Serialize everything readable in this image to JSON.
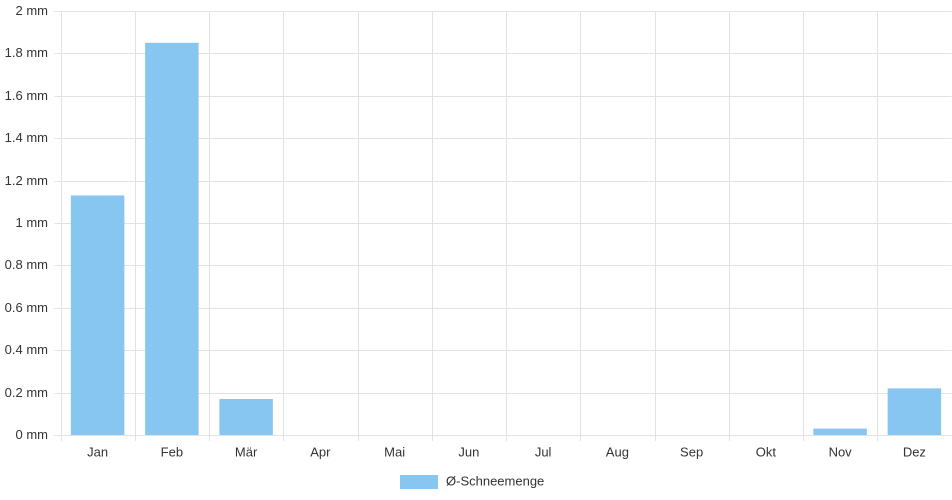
{
  "chart_data": {
    "type": "bar",
    "categories": [
      "Jan",
      "Feb",
      "Mär",
      "Apr",
      "Mai",
      "Jun",
      "Jul",
      "Aug",
      "Sep",
      "Okt",
      "Nov",
      "Dez"
    ],
    "series": [
      {
        "name": "Ø-Schneemenge",
        "color": "#88c6f2",
        "values": [
          1.13,
          1.85,
          0.17,
          0,
          0,
          0,
          0,
          0,
          0,
          0,
          0.03,
          0.22
        ]
      }
    ],
    "ylim": [
      0,
      2
    ],
    "yticks": [
      {
        "value": 0,
        "label": "0 mm"
      },
      {
        "value": 0.2,
        "label": "0.2 mm"
      },
      {
        "value": 0.4,
        "label": "0.4 mm"
      },
      {
        "value": 0.6,
        "label": "0.6 mm"
      },
      {
        "value": 0.8,
        "label": "0.8 mm"
      },
      {
        "value": 1,
        "label": "1 mm"
      },
      {
        "value": 1.2,
        "label": "1.2 mm"
      },
      {
        "value": 1.4,
        "label": "1.4 mm"
      },
      {
        "value": 1.6,
        "label": "1.6 mm"
      },
      {
        "value": 1.8,
        "label": "1.8 mm"
      },
      {
        "value": 2,
        "label": "2 mm"
      }
    ],
    "grid": true,
    "legend": "bottom"
  }
}
